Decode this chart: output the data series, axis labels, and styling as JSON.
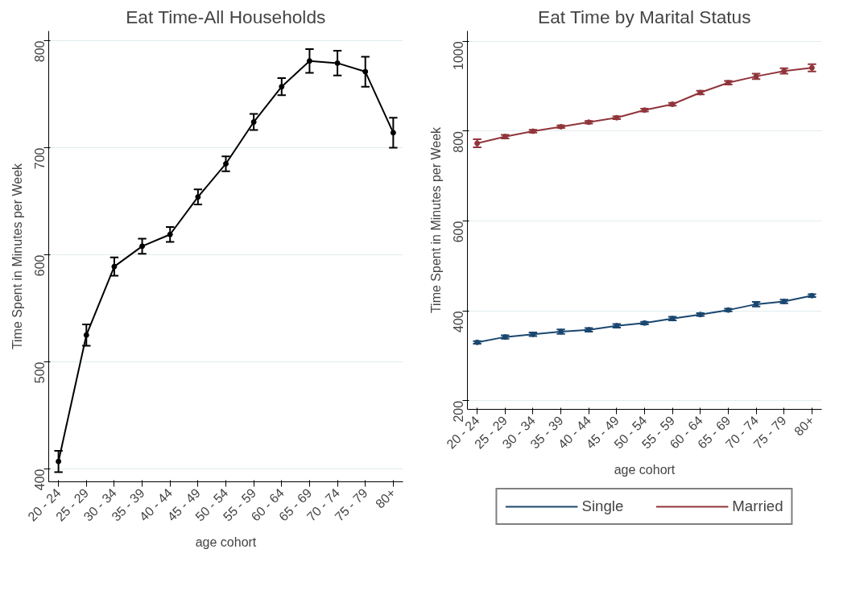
{
  "chart_data": [
    {
      "type": "line",
      "title": "Eat Time-All Households",
      "xlabel": "age cohort",
      "ylabel": "Time Spent in Minutes per Week",
      "categories": [
        "20 - 24",
        "25 - 29",
        "30 - 34",
        "35 - 39",
        "40 - 44",
        "45 - 49",
        "50 - 54",
        "55 - 59",
        "60 - 64",
        "65 - 69",
        "70 - 74",
        "75 - 79",
        "80+"
      ],
      "series": [
        {
          "color": "#000000",
          "values": [
            407,
            525,
            589,
            608,
            619,
            654,
            685,
            724,
            757,
            781,
            779,
            771,
            714
          ],
          "errors": [
            10,
            10,
            8.5,
            7,
            7,
            7,
            7,
            7.5,
            8,
            11,
            11.5,
            14,
            14
          ]
        }
      ],
      "ylim": [
        388,
        809
      ],
      "yticks": [
        400,
        500,
        600,
        700,
        800
      ],
      "grid": "y",
      "marker": "circle",
      "line_style": "solid",
      "legend": false
    },
    {
      "type": "line",
      "title": "Eat Time by Marital Status",
      "xlabel": "age cohort",
      "ylabel": "Time Spent in Minutes per Week",
      "categories": [
        "20 - 24",
        "25 - 29",
        "30 - 34",
        "35 - 39",
        "40 - 44",
        "45 - 49",
        "50 - 54",
        "55 - 59",
        "60 - 64",
        "65 - 69",
        "70 - 74",
        "75 - 79",
        "80+"
      ],
      "series": [
        {
          "name": "Single",
          "color": "#1a476f",
          "values": [
            330,
            342,
            348,
            354,
            358,
            367,
            373,
            383,
            392,
            402,
            415,
            421,
            434
          ],
          "errors": [
            3,
            4,
            4,
            5,
            4,
            4,
            3,
            4,
            3,
            3,
            5,
            4,
            3
          ]
        },
        {
          "name": "Married",
          "color": "#90353b",
          "values": [
            773,
            788,
            800,
            810,
            820,
            830,
            847,
            860,
            886,
            908,
            922,
            934,
            941
          ],
          "errors": [
            9,
            4,
            3,
            3,
            3,
            3,
            3,
            3,
            4,
            4,
            6,
            6,
            8
          ]
        }
      ],
      "ylim": [
        181,
        1023
      ],
      "yticks": [
        200,
        400,
        600,
        800,
        1000
      ],
      "grid": "y",
      "marker": "circle",
      "line_style": "solid",
      "legend": "bottom"
    }
  ]
}
